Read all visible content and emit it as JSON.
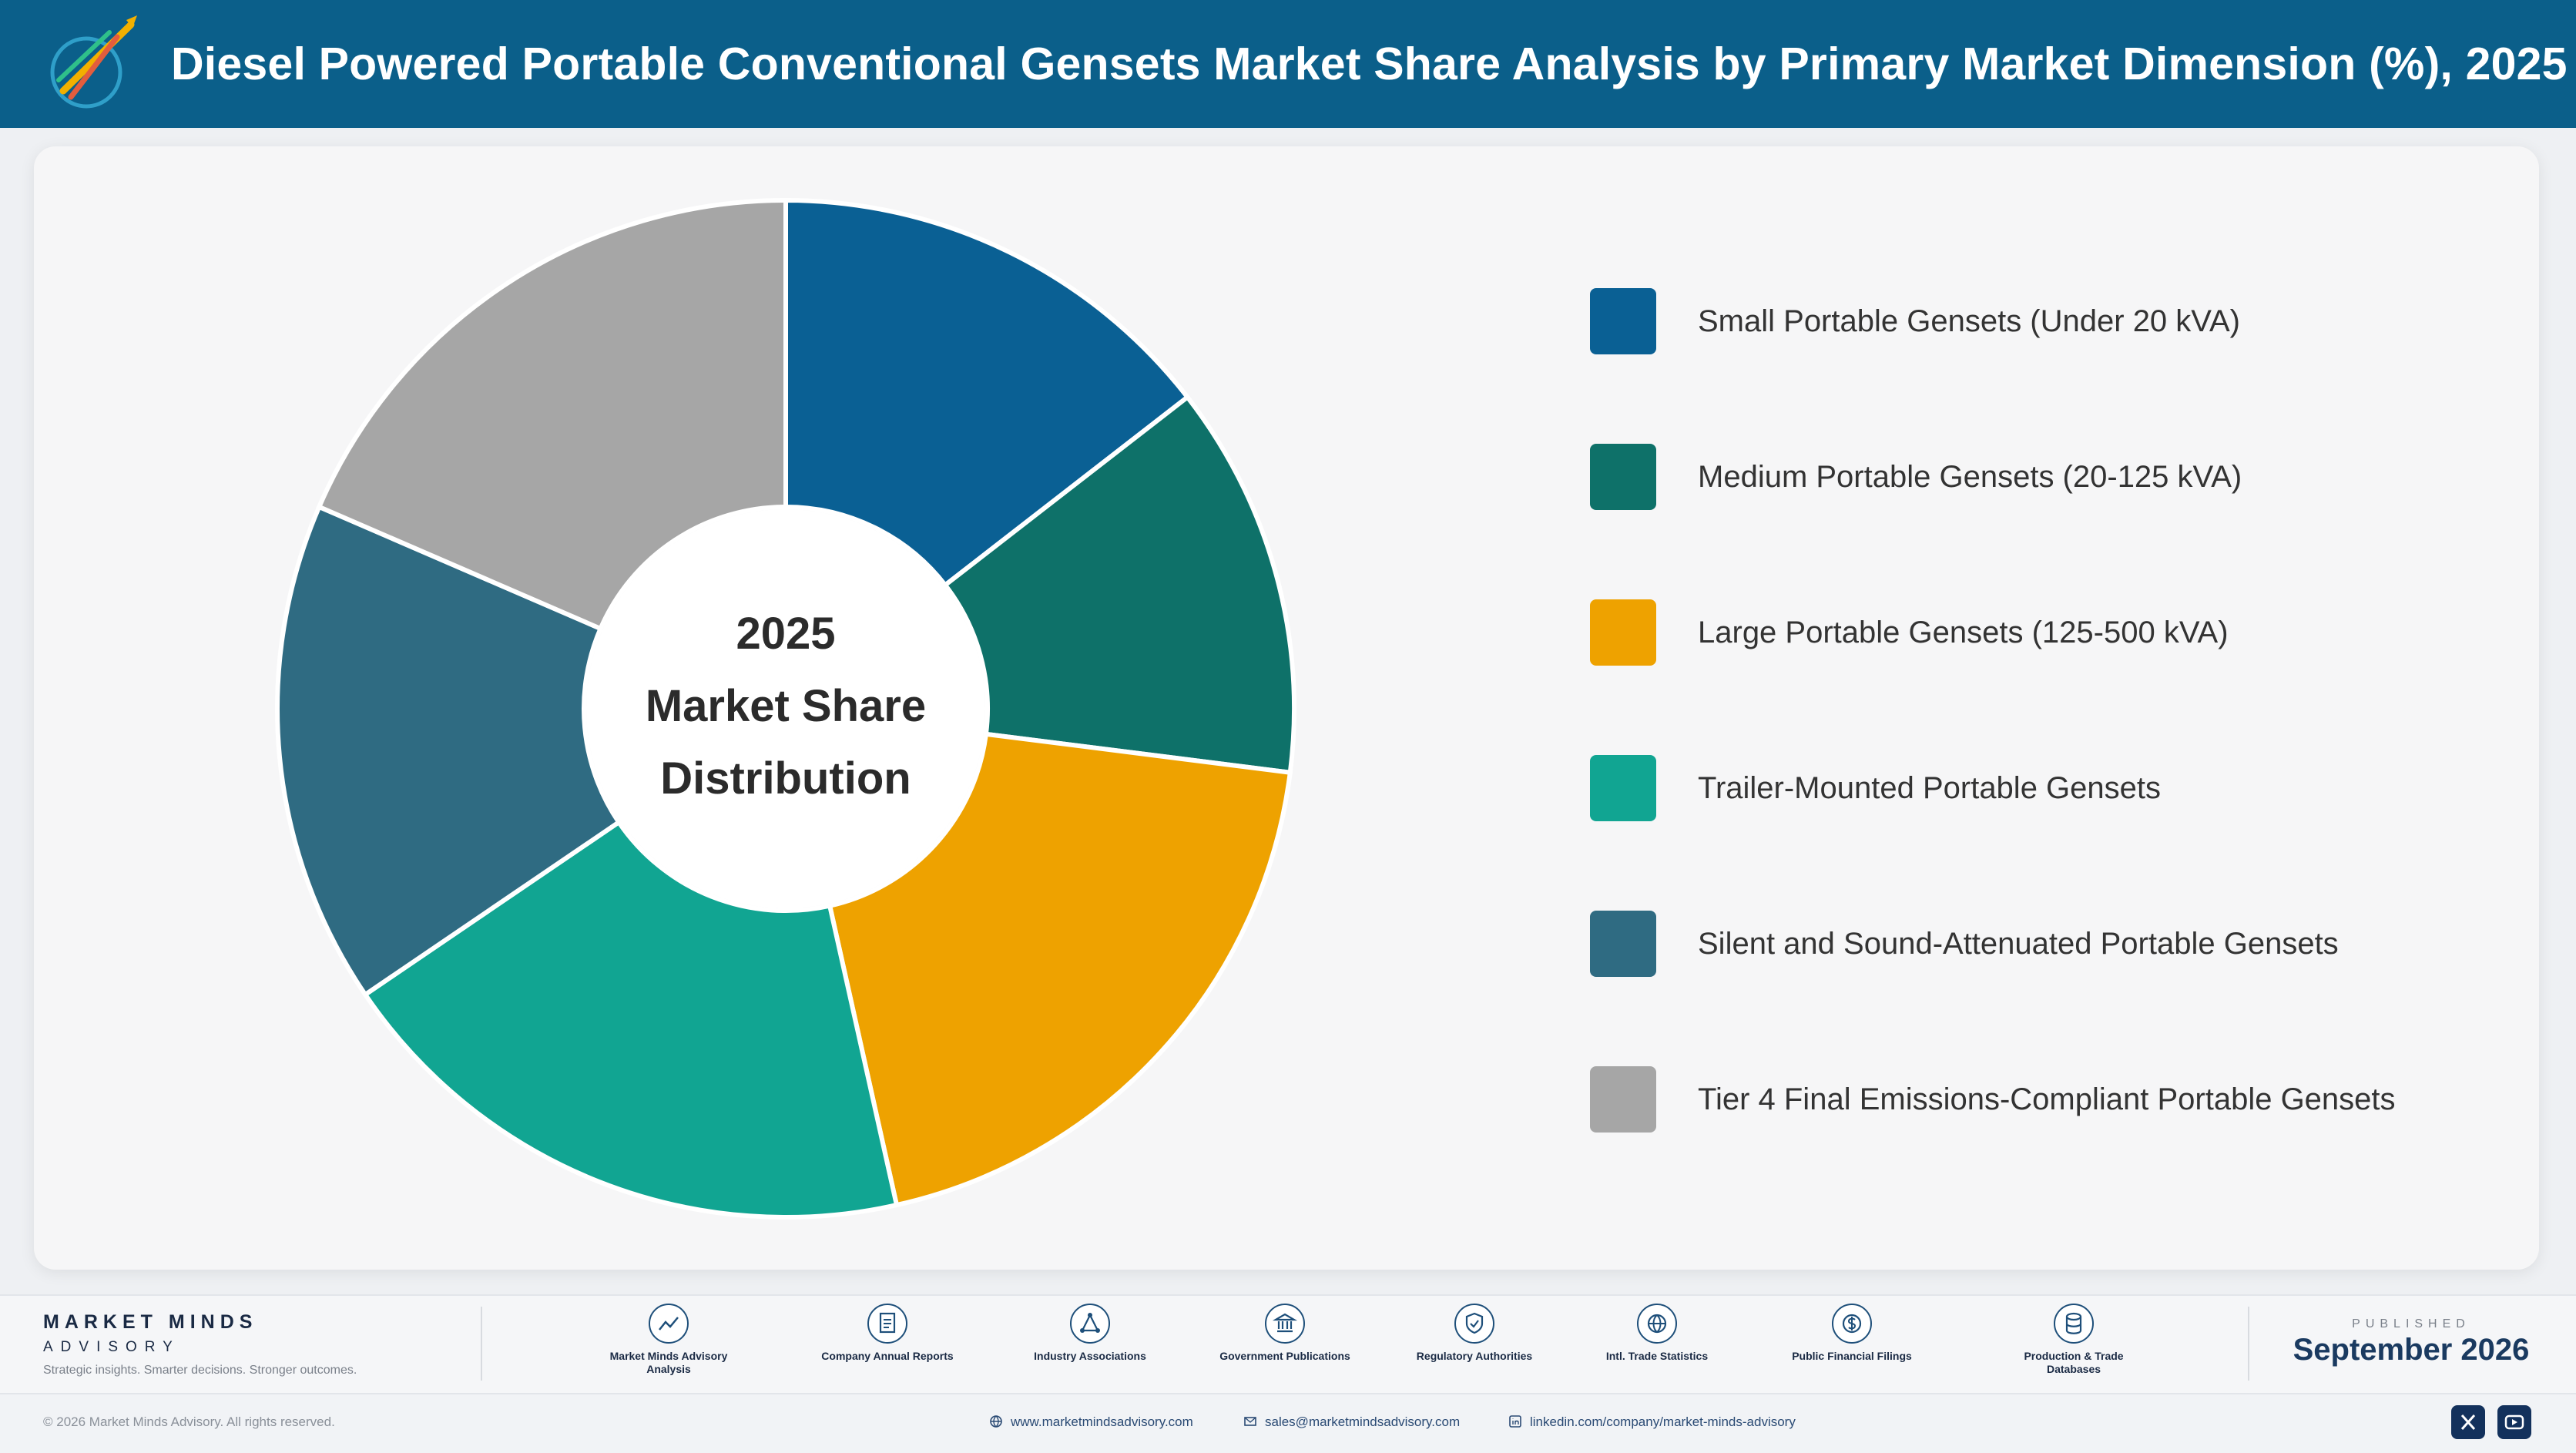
{
  "header": {
    "title": "Diesel Powered Portable Conventional Gensets Market Share Analysis by Primary Market Dimension (%), 2025",
    "logo_icon": "market-minds-logo-icon",
    "background": "#0b5f8a"
  },
  "chart_data": {
    "type": "pie",
    "center_label": [
      "2025",
      "Market Share",
      "Distribution"
    ],
    "categories": [
      "Small Portable Gensets (Under 20 kVA)",
      "Medium Portable Gensets (20-125 kVA)",
      "Large Portable Gensets (125-500 kVA)",
      "Trailer-Mounted Portable Gensets",
      "Silent and Sound-Attenuated Portable Gensets",
      "Tier 4 Final Emissions-Compliant Portable Gensets"
    ],
    "values": [
      14.5,
      12.5,
      19.5,
      19.0,
      16.0,
      18.5
    ],
    "colors": [
      "#0a6094",
      "#0e7169",
      "#eea200",
      "#11a592",
      "#2f6b82",
      "#a6a6a6"
    ],
    "legend_position": "right"
  },
  "footer": {
    "brand_name": "MARKET MINDS",
    "brand_sub": "ADVISORY",
    "brand_tagline": "Strategic insights. Smarter decisions. Stronger outcomes.",
    "sources": [
      {
        "label": "Market Minds Advisory Analysis",
        "icon": "trend-chart-icon"
      },
      {
        "label": "Company Annual Reports",
        "icon": "document-icon"
      },
      {
        "label": "Industry Associations",
        "icon": "network-icon"
      },
      {
        "label": "Government Publications",
        "icon": "government-building-icon"
      },
      {
        "label": "Regulatory Authorities",
        "icon": "shield-check-icon"
      },
      {
        "label": "Intl. Trade Statistics",
        "icon": "globe-icon"
      },
      {
        "label": "Public Financial Filings",
        "icon": "dollar-coin-icon"
      },
      {
        "label": "Production & Trade Databases",
        "icon": "database-icon"
      }
    ],
    "published_label": "PUBLISHED",
    "published_date": "September 2026",
    "copyright": "© 2026 Market Minds Advisory. All rights reserved.",
    "website": "www.marketmindsadvisory.com",
    "email": "sales@marketmindsadvisory.com",
    "linkedin": "linkedin.com/company/market-minds-advisory",
    "social": [
      "x-icon",
      "youtube-icon"
    ]
  }
}
